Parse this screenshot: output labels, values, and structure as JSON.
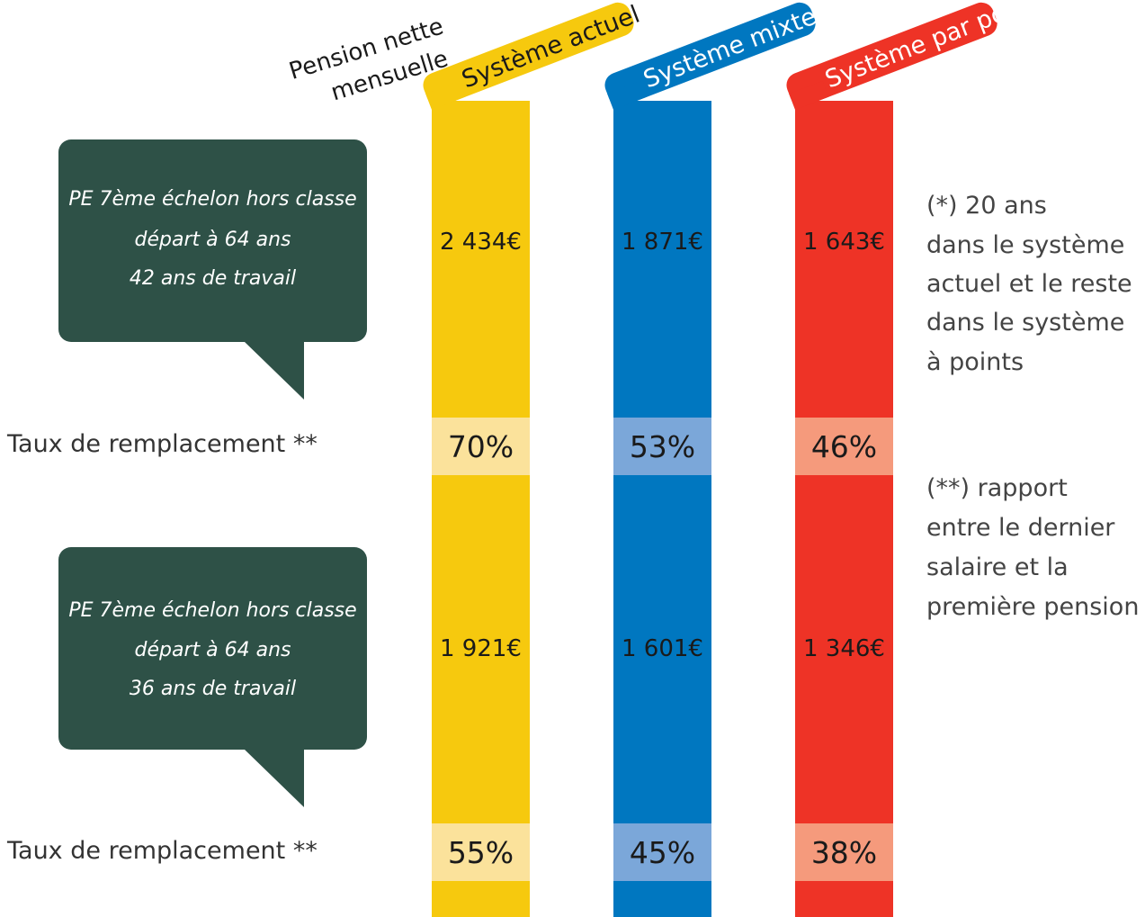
{
  "value_axis_label": [
    "Pension nette",
    "mensuelle"
  ],
  "row_label": "Taux de remplacement **",
  "scenarios": [
    {
      "lines": [
        "PE 7ème échelon hors classe",
        "départ à 64 ans",
        "42 ans de travail"
      ]
    },
    {
      "lines": [
        "PE 7ème échelon hors classe",
        "départ à 64 ans",
        "36 ans de travail"
      ]
    }
  ],
  "notes": [
    {
      "lines": [
        "(*) 20 ans",
        "dans le système",
        "actuel et le reste",
        "dans le système",
        "à points"
      ]
    },
    {
      "lines": [
        "(**) rapport",
        "entre le dernier",
        "salaire et la",
        "première pension"
      ]
    }
  ],
  "chart_data": {
    "type": "table",
    "series": [
      {
        "name": "Système actuel",
        "color": "#f6c90e",
        "rate_color": "#fbe29b",
        "text_color": "#1a1a1a",
        "pensions": [
          "2 434€",
          "1 921€"
        ],
        "pension_values": [
          2434,
          1921
        ],
        "rates": [
          "70%",
          "55%"
        ],
        "rate_values": [
          70,
          55
        ]
      },
      {
        "name": "Système mixte *",
        "color": "#0077c0",
        "rate_color": "#7ba7d9",
        "text_color": "#ffffff",
        "pensions": [
          "1 871€",
          "1 601€"
        ],
        "pension_values": [
          1871,
          1601
        ],
        "rates": [
          "53%",
          "45%"
        ],
        "rate_values": [
          53,
          45
        ]
      },
      {
        "name": "Système par points",
        "color": "#ee3326",
        "rate_color": "#f59a7c",
        "text_color": "#ffffff",
        "pensions": [
          "1 643€",
          "1 346€"
        ],
        "pension_values": [
          1643,
          1346
        ],
        "rates": [
          "46%",
          "38%"
        ],
        "rate_values": [
          46,
          38
        ]
      }
    ],
    "bubble_color": "#2e5147"
  }
}
